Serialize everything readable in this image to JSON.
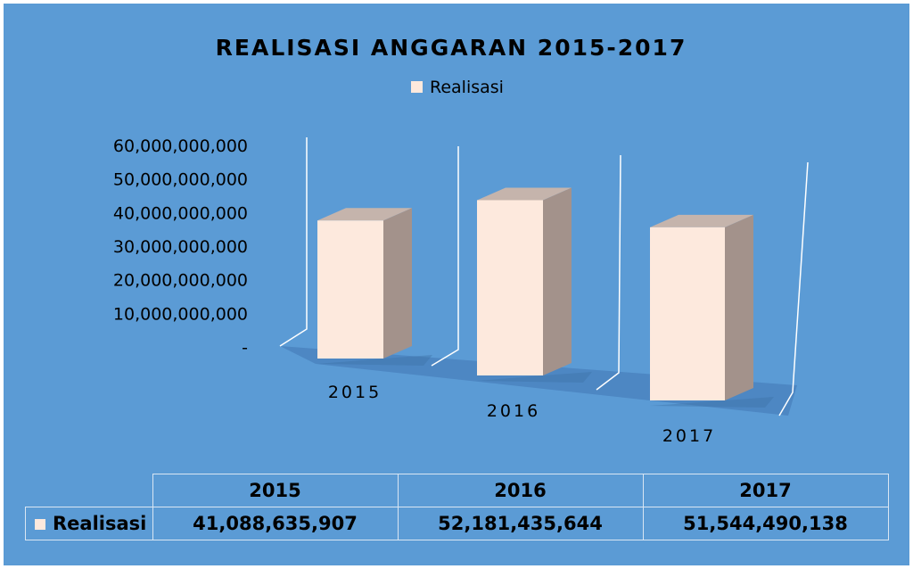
{
  "chart_data": {
    "type": "bar",
    "title": "REALISASI ANGGARAN 2015-2017",
    "categories": [
      "2015",
      "2016",
      "2017"
    ],
    "series": [
      {
        "name": "Realisasi",
        "values": [
          41088635907,
          52181435644,
          51544490138
        ]
      }
    ],
    "ylim": [
      0,
      60000000000
    ],
    "yticks": [
      "-",
      "10,000,000,000",
      "20,000,000,000",
      "30,000,000,000",
      "40,000,000,000",
      "50,000,000,000",
      "60,000,000,000"
    ],
    "legend_position": "top",
    "grid": false,
    "bar_color": "#fde9dd",
    "background_color": "#5b9bd5"
  },
  "table": {
    "headers": [
      "2015",
      "2016",
      "2017"
    ],
    "row_label": "Realisasi",
    "values": [
      "41,088,635,907",
      "52,181,435,644",
      "51,544,490,138"
    ]
  }
}
